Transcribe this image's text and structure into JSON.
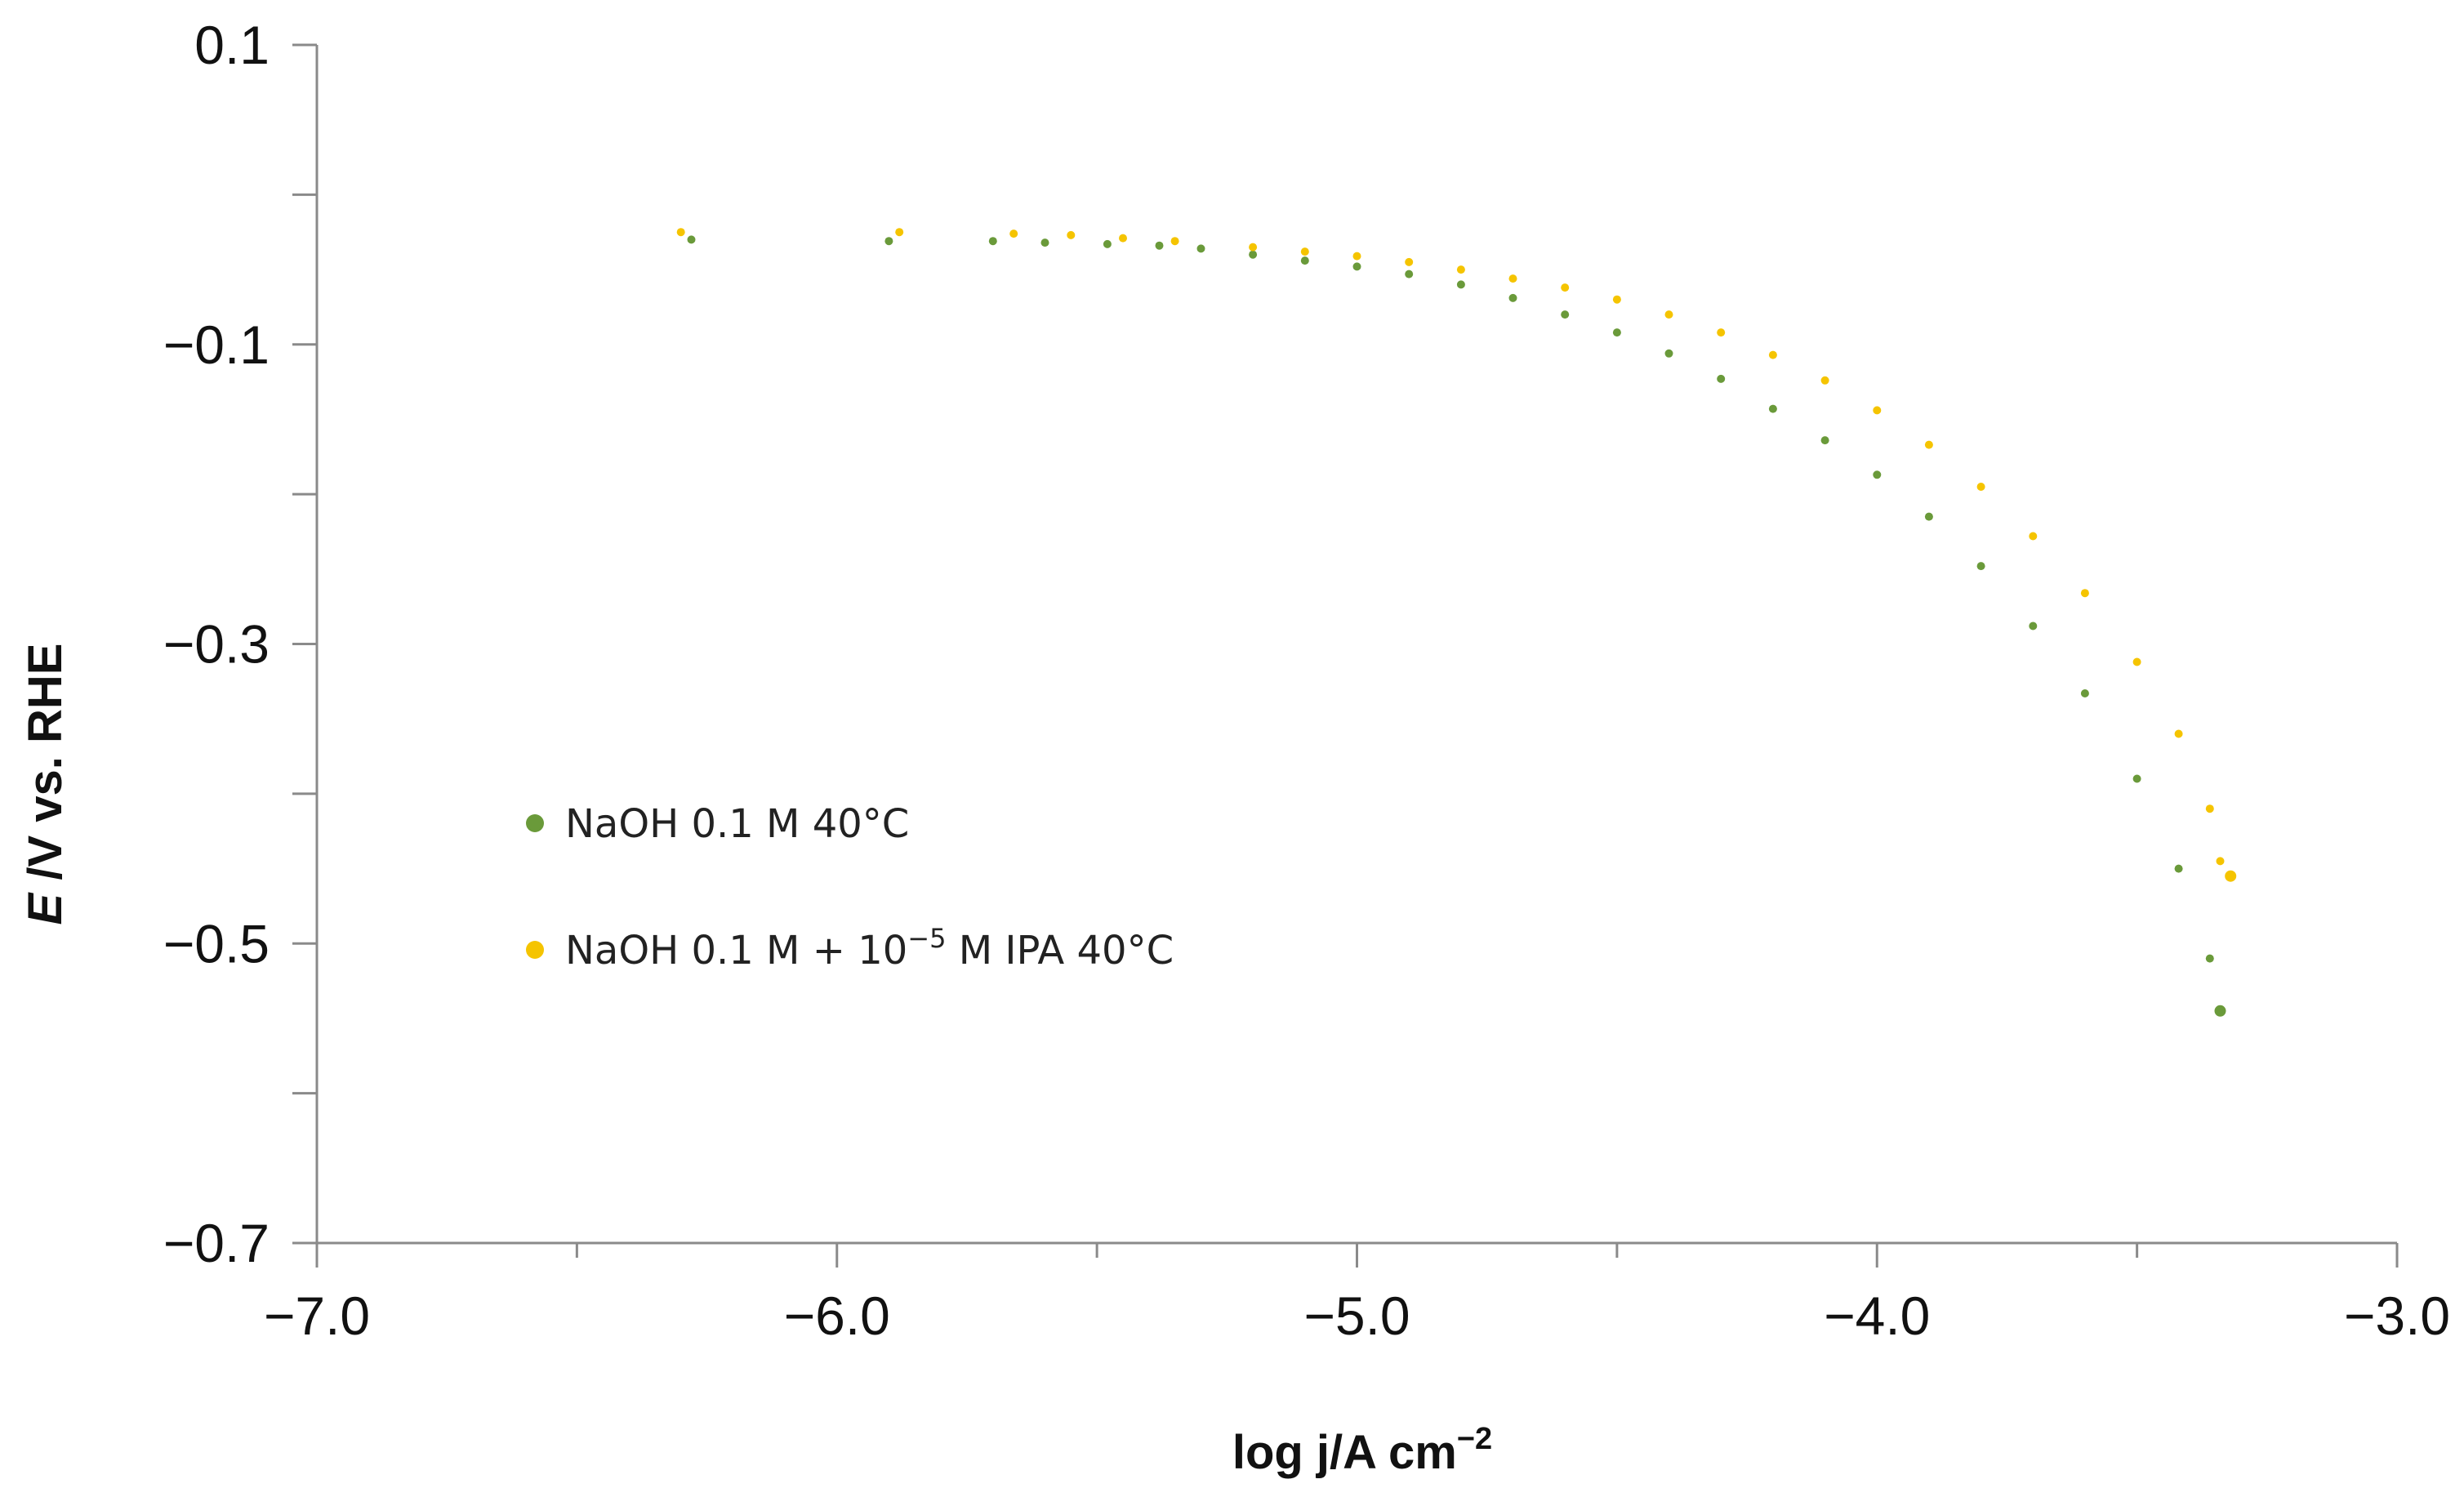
{
  "chart_data": {
    "type": "scatter",
    "title": "",
    "xlabel": {
      "prefix": "log j/A cm",
      "sup": "−2"
    },
    "ylabel": {
      "italic": "E",
      "rest": " /V vs. RHE"
    },
    "xlim": [
      -7.0,
      -3.0
    ],
    "ylim": [
      -0.7,
      0.1
    ],
    "x_ticks": [
      -7.0,
      -6.0,
      -5.0,
      -4.0,
      -3.0
    ],
    "x_tick_labels": [
      "−7.0",
      "−6.0",
      "−5.0",
      "−4.0",
      "−3.0"
    ],
    "x_minor_ticks": [
      -6.5,
      -5.5,
      -4.5,
      -3.5
    ],
    "y_ticks": [
      0.1,
      -0.1,
      -0.3,
      -0.5,
      -0.7
    ],
    "y_tick_labels": [
      "0.1",
      "−0.1",
      "−0.3",
      "−0.5",
      "−0.7"
    ],
    "y_minor_ticks": [
      0.0,
      -0.2,
      -0.4,
      -0.6
    ],
    "grid": false,
    "legend_position": "middle-left",
    "series": [
      {
        "name": "NaOH 0.1 M 40°C",
        "color": "#6a9a3a",
        "points": [
          [
            -6.28,
            -0.03
          ],
          [
            -5.9,
            -0.031
          ],
          [
            -5.7,
            -0.031
          ],
          [
            -5.6,
            -0.032
          ],
          [
            -5.48,
            -0.033
          ],
          [
            -5.38,
            -0.034
          ],
          [
            -5.3,
            -0.036
          ],
          [
            -5.2,
            -0.04
          ],
          [
            -5.1,
            -0.044
          ],
          [
            -5.0,
            -0.048
          ],
          [
            -4.9,
            -0.053
          ],
          [
            -4.8,
            -0.06
          ],
          [
            -4.7,
            -0.069
          ],
          [
            -4.6,
            -0.08
          ],
          [
            -4.5,
            -0.092
          ],
          [
            -4.4,
            -0.106
          ],
          [
            -4.3,
            -0.123
          ],
          [
            -4.2,
            -0.143
          ],
          [
            -4.1,
            -0.164
          ],
          [
            -4.0,
            -0.187
          ],
          [
            -3.9,
            -0.215
          ],
          [
            -3.8,
            -0.248
          ],
          [
            -3.7,
            -0.288
          ],
          [
            -3.6,
            -0.333
          ],
          [
            -3.5,
            -0.39
          ],
          [
            -3.42,
            -0.45
          ],
          [
            -3.36,
            -0.51
          ],
          [
            -3.34,
            -0.545
          ]
        ]
      },
      {
        "name": "NaOH 0.1 M + 10",
        "name_sup": "−5",
        "name_suffix": " M IPA 40°C",
        "color": "#f5c400",
        "points": [
          [
            -6.3,
            -0.025
          ],
          [
            -5.88,
            -0.025
          ],
          [
            -5.66,
            -0.026
          ],
          [
            -5.55,
            -0.027
          ],
          [
            -5.45,
            -0.029
          ],
          [
            -5.35,
            -0.031
          ],
          [
            -5.2,
            -0.035
          ],
          [
            -5.1,
            -0.038
          ],
          [
            -5.0,
            -0.041
          ],
          [
            -4.9,
            -0.045
          ],
          [
            -4.8,
            -0.05
          ],
          [
            -4.7,
            -0.056
          ],
          [
            -4.6,
            -0.062
          ],
          [
            -4.5,
            -0.07
          ],
          [
            -4.4,
            -0.08
          ],
          [
            -4.3,
            -0.092
          ],
          [
            -4.2,
            -0.107
          ],
          [
            -4.1,
            -0.124
          ],
          [
            -4.0,
            -0.144
          ],
          [
            -3.9,
            -0.167
          ],
          [
            -3.8,
            -0.195
          ],
          [
            -3.7,
            -0.228
          ],
          [
            -3.6,
            -0.266
          ],
          [
            -3.5,
            -0.312
          ],
          [
            -3.42,
            -0.36
          ],
          [
            -3.36,
            -0.41
          ],
          [
            -3.34,
            -0.445
          ],
          [
            -3.32,
            -0.455
          ]
        ]
      }
    ]
  }
}
